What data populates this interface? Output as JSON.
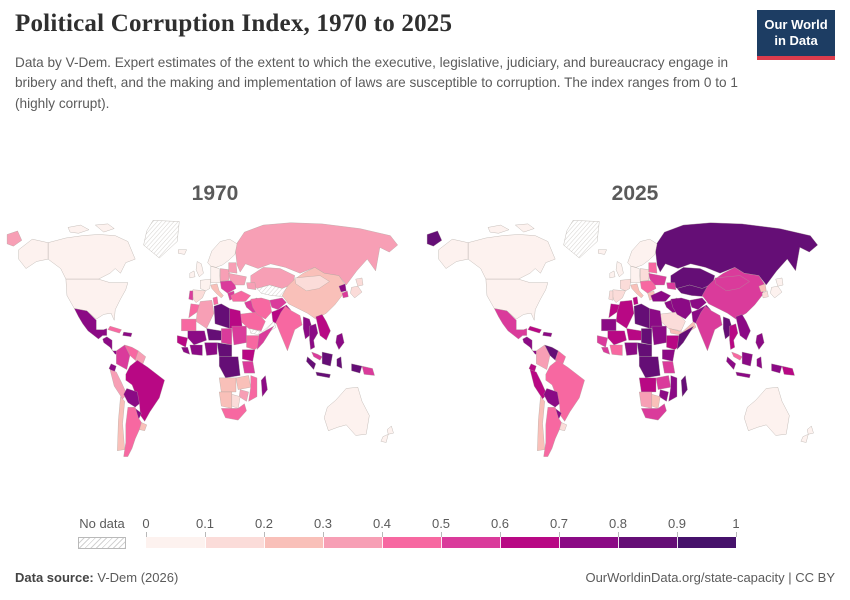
{
  "header": {
    "title": "Political Corruption Index, 1970 to 2025",
    "subtitle": "Data by V-Dem. Expert estimates of the extent to which the executive, legislative, judiciary, and bureaucracy engage in bribery and theft, and the making and implementation of laws are susceptible to corruption. The index ranges from 0 to 1 (highly corrupt).",
    "logo": {
      "line1": "Our World",
      "line2": "in Data",
      "bg_color": "#1d3d63",
      "stripe_color": "#dc3c4c"
    }
  },
  "footer": {
    "source_label": "Data source:",
    "source_value": " V-Dem (2026)",
    "link": "OurWorldinData.org/state-capacity",
    "separator": " | ",
    "license": "CC BY"
  },
  "chart_data": {
    "type": "heatmap",
    "variant": "world-choropleth-map-pair",
    "title": "Political Corruption Index, 1970 to 2025",
    "value_range": [
      0,
      1
    ],
    "panels": [
      {
        "label": "1970"
      },
      {
        "label": "2025"
      }
    ],
    "scale": {
      "no_data_label": "No data",
      "tick_labels": [
        "0",
        "0.1",
        "0.2",
        "0.3",
        "0.4",
        "0.5",
        "0.6",
        "0.7",
        "0.8",
        "0.9",
        "1"
      ],
      "bin_colors": [
        "#fdf2ef",
        "#fbdcd9",
        "#f9c0b9",
        "#f79fb5",
        "#f768a1",
        "#da3b9b",
        "#b80884",
        "#8b0a85",
        "#650e76",
        "#46126b"
      ]
    },
    "regions": [
      {
        "id": "russia",
        "values": [
          0.35,
          0.88
        ]
      },
      {
        "id": "kazakhstan",
        "values": [
          0.35,
          0.82
        ]
      },
      {
        "id": "central_asia",
        "values": [
          null,
          0.85
        ]
      },
      {
        "id": "china",
        "values": [
          0.25,
          0.58
        ]
      },
      {
        "id": "mongolia",
        "values": [
          0.12,
          0.58
        ]
      },
      {
        "id": "canada",
        "values": [
          0.03,
          0.04
        ]
      },
      {
        "id": "usa",
        "values": [
          0.06,
          0.08
        ]
      },
      {
        "id": "greenland",
        "values": [
          null,
          null
        ]
      },
      {
        "id": "iceland",
        "values": [
          0.04,
          0.04
        ]
      },
      {
        "id": "mexico",
        "values": [
          0.78,
          0.55
        ]
      },
      {
        "id": "central_america",
        "values": [
          0.75,
          0.7
        ]
      },
      {
        "id": "cuba",
        "values": [
          0.45,
          0.62
        ]
      },
      {
        "id": "hispaniola",
        "values": [
          0.75,
          0.7
        ]
      },
      {
        "id": "colombia",
        "values": [
          0.52,
          0.32
        ]
      },
      {
        "id": "venezuela",
        "values": [
          0.45,
          0.88
        ]
      },
      {
        "id": "guianas",
        "values": [
          0.32,
          0.45
        ]
      },
      {
        "id": "ecuador",
        "values": [
          0.7,
          0.6
        ]
      },
      {
        "id": "peru",
        "values": [
          0.3,
          0.65
        ]
      },
      {
        "id": "brazil",
        "values": [
          0.62,
          0.45
        ]
      },
      {
        "id": "bolivia",
        "values": [
          0.78,
          0.72
        ]
      },
      {
        "id": "paraguay",
        "values": [
          0.72,
          0.72
        ]
      },
      {
        "id": "chile",
        "values": [
          0.28,
          0.28
        ]
      },
      {
        "id": "argentina",
        "values": [
          0.45,
          0.45
        ]
      },
      {
        "id": "uruguay",
        "values": [
          0.22,
          0.12
        ]
      },
      {
        "id": "scandinavia",
        "values": [
          0.03,
          0.03
        ]
      },
      {
        "id": "uk",
        "values": [
          0.05,
          0.06
        ]
      },
      {
        "id": "ireland",
        "values": [
          0.04,
          0.04
        ]
      },
      {
        "id": "france",
        "values": [
          0.08,
          0.1
        ]
      },
      {
        "id": "spain",
        "values": [
          0.18,
          0.14
        ]
      },
      {
        "id": "portugal",
        "values": [
          0.55,
          0.12
        ]
      },
      {
        "id": "central_europe",
        "values": [
          0.06,
          0.08
        ]
      },
      {
        "id": "italy",
        "values": [
          0.22,
          0.2
        ]
      },
      {
        "id": "poland",
        "values": [
          0.32,
          0.15
        ]
      },
      {
        "id": "balkans",
        "values": [
          0.55,
          0.45
        ]
      },
      {
        "id": "greece",
        "values": [
          0.55,
          0.22
        ]
      },
      {
        "id": "belarus_baltics",
        "values": [
          0.35,
          0.45
        ]
      },
      {
        "id": "ukraine",
        "values": [
          0.35,
          0.55
        ]
      },
      {
        "id": "caucasus",
        "values": [
          0.35,
          0.55
        ]
      },
      {
        "id": "turkey",
        "values": [
          0.42,
          0.75
        ]
      },
      {
        "id": "syria_iraq",
        "values": [
          0.55,
          0.72
        ]
      },
      {
        "id": "saudi_arabia",
        "values": [
          0.42,
          0.15
        ]
      },
      {
        "id": "yemen_oman",
        "values": [
          null,
          0.22
        ]
      },
      {
        "id": "iran",
        "values": [
          0.42,
          0.78
        ]
      },
      {
        "id": "afghanistan",
        "values": [
          0.55,
          0.78
        ]
      },
      {
        "id": "pakistan",
        "values": [
          0.62,
          0.72
        ]
      },
      {
        "id": "india",
        "values": [
          0.42,
          0.55
        ]
      },
      {
        "id": "north_korea",
        "values": [
          0.75,
          0.25
        ]
      },
      {
        "id": "south_korea",
        "values": [
          0.58,
          0.15
        ]
      },
      {
        "id": "japan",
        "values": [
          0.15,
          0.08
        ]
      },
      {
        "id": "myanmar",
        "values": [
          0.78,
          0.8
        ]
      },
      {
        "id": "thailand",
        "values": [
          0.75,
          0.62
        ]
      },
      {
        "id": "indochina",
        "values": [
          0.68,
          0.72
        ]
      },
      {
        "id": "malaysia",
        "values": [
          0.55,
          0.45
        ]
      },
      {
        "id": "philippines",
        "values": [
          0.78,
          0.72
        ]
      },
      {
        "id": "indonesia",
        "values": [
          0.8,
          0.75
        ]
      },
      {
        "id": "papua_new_guinea",
        "values": [
          0.55,
          0.62
        ]
      },
      {
        "id": "morocco",
        "values": [
          0.45,
          0.62
        ]
      },
      {
        "id": "mauritania",
        "values": [
          0.4,
          0.72
        ]
      },
      {
        "id": "algeria",
        "values": [
          0.3,
          0.65
        ]
      },
      {
        "id": "tunisia",
        "values": [
          0.45,
          0.65
        ]
      },
      {
        "id": "libya",
        "values": [
          0.85,
          0.85
        ]
      },
      {
        "id": "egypt",
        "values": [
          0.6,
          0.78
        ]
      },
      {
        "id": "mali",
        "values": [
          0.72,
          0.65
        ]
      },
      {
        "id": "niger",
        "values": [
          0.8,
          0.62
        ]
      },
      {
        "id": "chad",
        "values": [
          0.58,
          0.8
        ]
      },
      {
        "id": "sudan",
        "values": [
          0.5,
          0.72
        ]
      },
      {
        "id": "senegal_guinea",
        "values": [
          0.62,
          0.55
        ]
      },
      {
        "id": "sierra_leone_liberia",
        "values": [
          0.72,
          0.5
        ]
      },
      {
        "id": "ghana_ivory_coast",
        "values": [
          0.78,
          0.45
        ]
      },
      {
        "id": "nigeria",
        "values": [
          0.72,
          0.78
        ]
      },
      {
        "id": "cameroon_car",
        "values": [
          0.82,
          0.85
        ]
      },
      {
        "id": "ethiopia",
        "values": [
          0.45,
          0.6
        ]
      },
      {
        "id": "somalia",
        "values": [
          0.55,
          0.85
        ]
      },
      {
        "id": "kenya_uganda",
        "values": [
          0.62,
          0.7
        ]
      },
      {
        "id": "dr_congo",
        "values": [
          0.85,
          0.85
        ]
      },
      {
        "id": "tanzania",
        "values": [
          0.55,
          0.55
        ]
      },
      {
        "id": "angola",
        "values": [
          0.25,
          0.6
        ]
      },
      {
        "id": "zambia",
        "values": [
          0.28,
          0.55
        ]
      },
      {
        "id": "mozambique",
        "values": [
          0.48,
          0.7
        ]
      },
      {
        "id": "zimbabwe",
        "values": [
          0.35,
          0.78
        ]
      },
      {
        "id": "namibia",
        "values": [
          0.22,
          0.32
        ]
      },
      {
        "id": "botswana",
        "values": [
          0.18,
          0.22
        ]
      },
      {
        "id": "south_africa",
        "values": [
          0.45,
          0.55
        ]
      },
      {
        "id": "madagascar",
        "values": [
          0.78,
          0.82
        ]
      },
      {
        "id": "australia",
        "values": [
          0.04,
          0.06
        ]
      },
      {
        "id": "new_zealand",
        "values": [
          0.02,
          0.02
        ]
      }
    ]
  }
}
